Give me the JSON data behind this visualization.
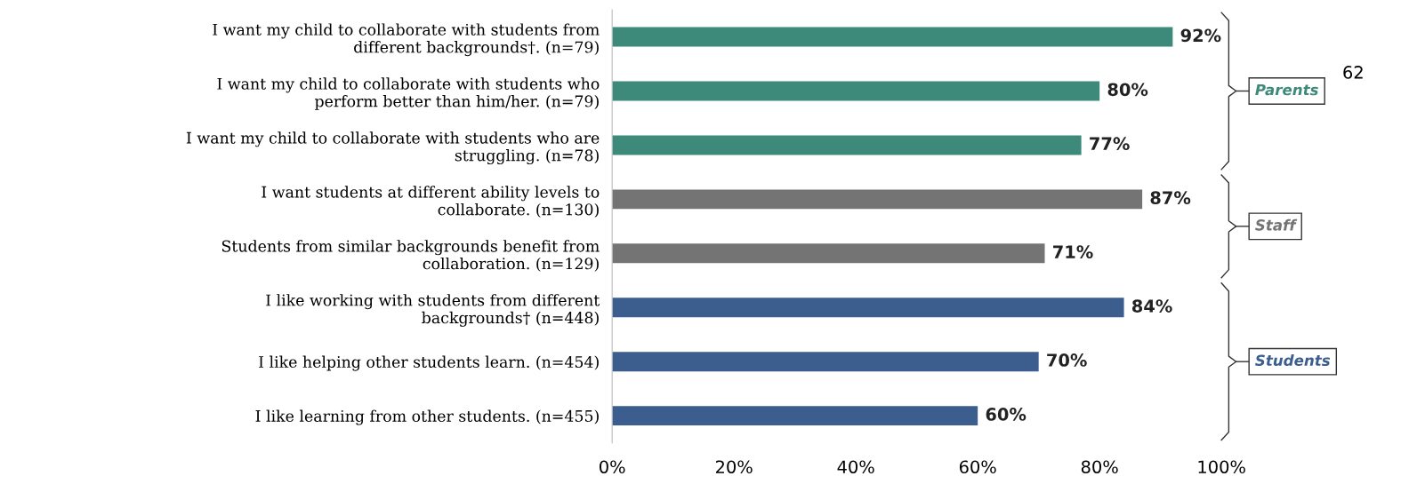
{
  "chart_data": {
    "type": "bar",
    "orientation": "horizontal",
    "categories": [
      "I want my child to collaborate with students from\ndifferent backgrounds†. (n=79)",
      "I want my child to collaborate with students who\nperform better than him/her. (n=79)",
      "I want my child to collaborate with students who are\nstruggling. (n=78)",
      "I want students at different ability levels to\ncollaborate. (n=130)",
      "Students from similar backgrounds benefit from\ncollaboration. (n=129)",
      "I like working with students from different\nbackgrounds† (n=448)",
      "I like helping other students learn. (n=454)",
      "I like learning from other students. (n=455)"
    ],
    "values": [
      92,
      80,
      77,
      87,
      71,
      84,
      70,
      60
    ],
    "colors": [
      "#3d8a7b",
      "#3d8a7b",
      "#3d8a7b",
      "#747474",
      "#747474",
      "#3b5e8e",
      "#3b5e8e",
      "#3b5e8e"
    ],
    "value_labels": [
      "92%",
      "80%",
      "77%",
      "87%",
      "71%",
      "84%",
      "70%",
      "60%"
    ],
    "xlim": [
      0,
      100
    ],
    "xticks": [
      {
        "value": 0,
        "label": "0%"
      },
      {
        "value": 20,
        "label": "20%"
      },
      {
        "value": 40,
        "label": "40%"
      },
      {
        "value": 60,
        "label": "60%"
      },
      {
        "value": 80,
        "label": "80%"
      },
      {
        "value": 100,
        "label": "100%"
      }
    ],
    "grid": false,
    "annotations": [
      "Parents",
      "Staff",
      "Students",
      "62"
    ]
  }
}
